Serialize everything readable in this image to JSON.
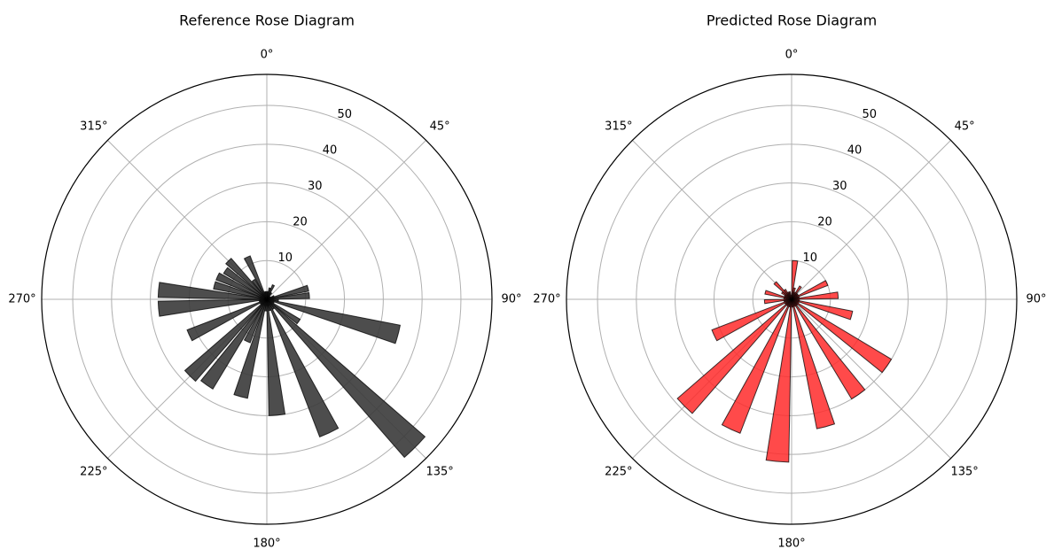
{
  "chart_data": [
    {
      "type": "rose",
      "title": "Reference Rose Diagram",
      "bar_color": "#3a3a3a",
      "bar_opacity": 0.9,
      "edge_color": "#000000",
      "theta_direction": "clockwise",
      "theta_zero": "north",
      "theta_tick_labels": [
        "0°",
        "45°",
        "90°",
        "135°",
        "180°",
        "225°",
        "270°",
        "315°"
      ],
      "r_ticks": [
        10,
        20,
        30,
        40,
        50
      ],
      "r_tick_labels": [
        "10",
        "20",
        "30",
        "40",
        "50"
      ],
      "r_max": 58,
      "bin_width_deg": 10,
      "bin_angles_deg": [
        5,
        15,
        25,
        35,
        45,
        55,
        65,
        75,
        85,
        95,
        105,
        115,
        125,
        135,
        145,
        155,
        165,
        175,
        185,
        195,
        205,
        215,
        225,
        235,
        245,
        255,
        265,
        275,
        285,
        295,
        305,
        315,
        325,
        335,
        345,
        355
      ],
      "values": [
        2,
        3,
        4,
        2,
        1,
        1,
        2,
        11,
        11,
        3,
        35,
        2,
        10,
        54,
        3,
        38,
        3,
        30,
        3,
        26,
        12,
        27,
        28,
        2,
        22,
        2,
        28,
        28,
        14,
        14,
        13,
        14,
        6,
        12,
        2,
        2
      ]
    },
    {
      "type": "rose",
      "title": "Predicted Rose Diagram",
      "bar_color": "#ff2a2a",
      "bar_opacity": 0.85,
      "edge_color": "#000000",
      "theta_direction": "clockwise",
      "theta_zero": "north",
      "theta_tick_labels": [
        "0°",
        "45°",
        "90°",
        "135°",
        "180°",
        "225°",
        "270°",
        "315°"
      ],
      "r_ticks": [
        10,
        20,
        30,
        40,
        50
      ],
      "r_tick_labels": [
        "10",
        "20",
        "30",
        "40",
        "50"
      ],
      "r_max": 58,
      "bin_width_deg": 10,
      "bin_angles_deg": [
        5,
        15,
        25,
        35,
        45,
        55,
        65,
        75,
        85,
        95,
        105,
        115,
        125,
        135,
        145,
        155,
        165,
        175,
        185,
        195,
        205,
        215,
        225,
        235,
        245,
        255,
        265,
        275,
        285,
        295,
        305,
        315,
        325,
        335,
        345,
        355
      ],
      "values": [
        10,
        3,
        2,
        4,
        2,
        2,
        10,
        2,
        12,
        2,
        16,
        2,
        30,
        2,
        30,
        2,
        34,
        2,
        42,
        2,
        37,
        2,
        39,
        2,
        22,
        2,
        7,
        2,
        7,
        2,
        3,
        6,
        3,
        2,
        2,
        1
      ]
    }
  ]
}
